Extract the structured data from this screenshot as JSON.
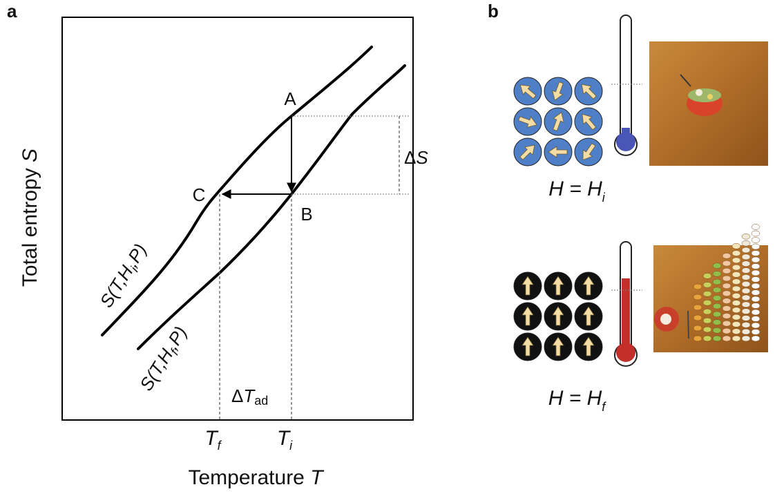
{
  "panel_a": {
    "label": "a",
    "y_axis": {
      "text": "Total entropy ",
      "symbol": "S"
    },
    "x_axis": {
      "text": "Temperature ",
      "symbol": "T"
    },
    "points": [
      "A",
      "B",
      "C"
    ],
    "delta_s": {
      "delta": "Δ",
      "symbol": "S"
    },
    "delta_t": {
      "delta": "Δ",
      "symbol": "T",
      "sub": "ad"
    },
    "ticks": [
      {
        "main": "T",
        "sub": "f"
      },
      {
        "main": "T",
        "sub": "i"
      }
    ],
    "curves": [
      {
        "main": "S(T,H",
        "sub": "i",
        "end": ",P)"
      },
      {
        "main": "S(T,H",
        "sub": "f",
        "end": ",P)"
      }
    ]
  },
  "panel_b": {
    "label": "b",
    "states": [
      {
        "main": "H = H",
        "sub": "i"
      },
      {
        "main": "H = H",
        "sub": "f"
      }
    ]
  }
}
